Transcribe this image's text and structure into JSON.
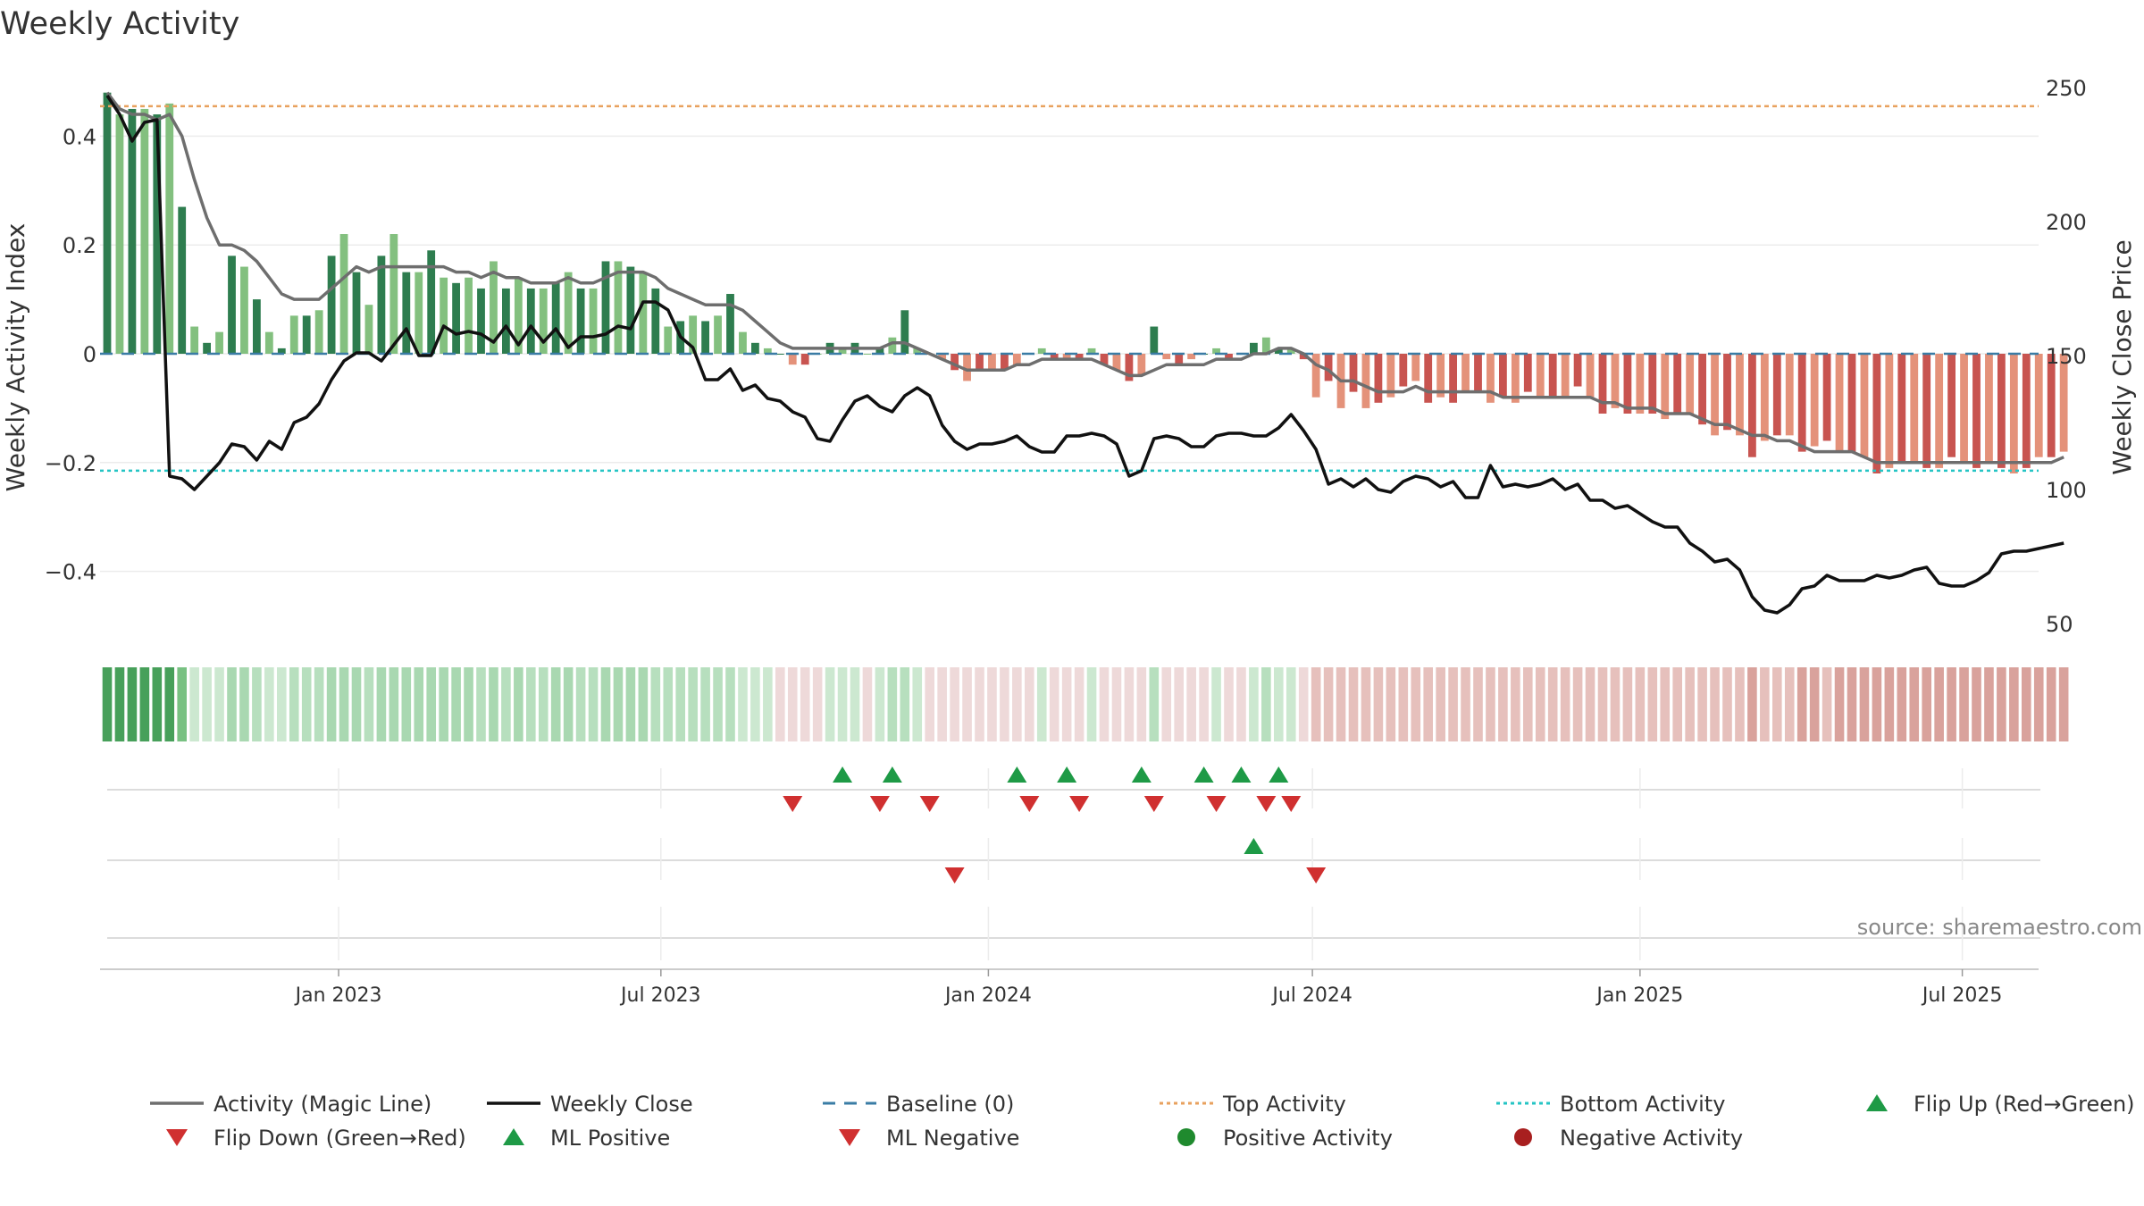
{
  "chart_data": {
    "type": "bar",
    "title": "Weekly Activity",
    "ylabel": "Weekly Activity Index",
    "y2label": "Weekly Close Price",
    "ylim": [
      -0.52,
      0.5
    ],
    "y2lim": [
      45.0,
      255.0
    ],
    "yticks": [
      0.4,
      0.2,
      0.0,
      -0.2,
      -0.4
    ],
    "ytick_labels": [
      "0.4",
      "0.2",
      "0",
      "−0.2",
      "−0.4"
    ],
    "y2ticks": [
      250,
      200,
      150,
      100,
      50
    ],
    "x_ticks": [
      {
        "label": "Jan 2023",
        "week": 18.57
      },
      {
        "label": "Jul 2023",
        "week": 44.43
      },
      {
        "label": "Jan 2024",
        "week": 70.71
      },
      {
        "label": "Jul 2024",
        "week": 96.71
      },
      {
        "label": "Jan 2025",
        "week": 123.0
      },
      {
        "label": "Jul 2025",
        "week": 148.86
      }
    ],
    "top_activity": 0.455,
    "bottom_activity": -0.215,
    "baseline": 0,
    "activity": [
      0.48,
      0.44,
      0.45,
      0.45,
      0.44,
      0.46,
      0.27,
      0.05,
      0.02,
      0.04,
      0.18,
      0.16,
      0.1,
      0.04,
      0.01,
      0.07,
      0.07,
      0.08,
      0.18,
      0.22,
      0.15,
      0.09,
      0.18,
      0.22,
      0.15,
      0.15,
      0.19,
      0.14,
      0.13,
      0.14,
      0.12,
      0.17,
      0.12,
      0.14,
      0.12,
      0.12,
      0.13,
      0.15,
      0.12,
      0.12,
      0.17,
      0.17,
      0.16,
      0.15,
      0.12,
      0.05,
      0.06,
      0.07,
      0.06,
      0.07,
      0.11,
      0.04,
      0.02,
      0.01,
      0.0,
      -0.02,
      -0.02,
      -0.0,
      0.02,
      0.01,
      0.02,
      0.0,
      0.01,
      0.03,
      0.08,
      0.01,
      0.0,
      -0.01,
      -0.03,
      -0.05,
      -0.03,
      -0.03,
      -0.03,
      -0.02,
      0.0,
      0.01,
      -0.01,
      -0.01,
      -0.01,
      0.01,
      -0.02,
      -0.03,
      -0.05,
      -0.04,
      0.05,
      -0.01,
      -0.02,
      -0.01,
      0.0,
      0.01,
      -0.01,
      -0.0,
      0.02,
      0.03,
      0.01,
      0.01,
      -0.01,
      -0.08,
      -0.05,
      -0.1,
      -0.07,
      -0.1,
      -0.09,
      -0.08,
      -0.06,
      -0.05,
      -0.09,
      -0.08,
      -0.09,
      -0.07,
      -0.07,
      -0.09,
      -0.08,
      -0.09,
      -0.07,
      -0.08,
      -0.08,
      -0.08,
      -0.06,
      -0.08,
      -0.11,
      -0.1,
      -0.11,
      -0.11,
      -0.11,
      -0.12,
      -0.11,
      -0.11,
      -0.13,
      -0.15,
      -0.14,
      -0.15,
      -0.19,
      -0.16,
      -0.15,
      -0.15,
      -0.18,
      -0.17,
      -0.16,
      -0.18,
      -0.18,
      -0.19,
      -0.22,
      -0.21,
      -0.2,
      -0.2,
      -0.21,
      -0.21,
      -0.19,
      -0.2,
      -0.21,
      -0.2,
      -0.21,
      -0.22,
      -0.21,
      -0.19,
      -0.19,
      -0.18
    ],
    "magic_line": [
      0.48,
      0.45,
      0.44,
      0.44,
      0.43,
      0.44,
      0.4,
      0.32,
      0.25,
      0.2,
      0.2,
      0.19,
      0.17,
      0.14,
      0.11,
      0.1,
      0.1,
      0.1,
      0.12,
      0.14,
      0.16,
      0.15,
      0.16,
      0.16,
      0.16,
      0.16,
      0.16,
      0.16,
      0.15,
      0.15,
      0.14,
      0.15,
      0.14,
      0.14,
      0.13,
      0.13,
      0.13,
      0.14,
      0.13,
      0.13,
      0.14,
      0.15,
      0.15,
      0.15,
      0.14,
      0.12,
      0.11,
      0.1,
      0.09,
      0.09,
      0.09,
      0.08,
      0.06,
      0.04,
      0.02,
      0.01,
      0.01,
      0.01,
      0.01,
      0.01,
      0.01,
      0.01,
      0.01,
      0.02,
      0.02,
      0.01,
      -0.0,
      -0.01,
      -0.02,
      -0.03,
      -0.03,
      -0.03,
      -0.03,
      -0.02,
      -0.02,
      -0.01,
      -0.01,
      -0.01,
      -0.01,
      -0.01,
      -0.02,
      -0.03,
      -0.04,
      -0.04,
      -0.03,
      -0.02,
      -0.02,
      -0.02,
      -0.02,
      -0.01,
      -0.01,
      -0.01,
      -0.0,
      0.0,
      0.01,
      0.01,
      -0.0,
      -0.02,
      -0.03,
      -0.05,
      -0.05,
      -0.06,
      -0.07,
      -0.07,
      -0.07,
      -0.06,
      -0.07,
      -0.07,
      -0.07,
      -0.07,
      -0.07,
      -0.07,
      -0.08,
      -0.08,
      -0.08,
      -0.08,
      -0.08,
      -0.08,
      -0.08,
      -0.08,
      -0.09,
      -0.09,
      -0.1,
      -0.1,
      -0.1,
      -0.11,
      -0.11,
      -0.11,
      -0.12,
      -0.13,
      -0.13,
      -0.14,
      -0.15,
      -0.15,
      -0.16,
      -0.16,
      -0.17,
      -0.18,
      -0.18,
      -0.18,
      -0.18,
      -0.19,
      -0.2,
      -0.2,
      -0.2,
      -0.2,
      -0.2,
      -0.2,
      -0.2,
      -0.2,
      -0.2,
      -0.2,
      -0.2,
      -0.2,
      -0.2,
      -0.2,
      -0.2,
      -0.19
    ],
    "weekly_close": [
      247,
      240,
      230,
      237,
      238,
      105,
      104,
      100,
      105,
      110,
      117,
      116,
      111,
      118,
      115,
      125,
      127,
      132,
      141,
      148,
      151,
      151,
      148,
      154,
      160,
      150,
      150,
      161,
      158,
      159,
      158,
      155,
      161,
      154,
      161,
      155,
      160,
      153,
      157,
      157,
      158,
      161,
      160,
      170,
      170,
      167,
      157,
      153,
      141,
      141,
      145,
      137,
      139,
      134,
      133,
      129,
      127,
      119,
      118,
      126,
      133,
      135,
      131,
      129,
      135,
      138,
      135,
      124,
      118,
      115,
      117,
      117,
      118,
      120,
      116,
      114,
      114,
      120,
      120,
      121,
      120,
      117,
      105,
      107,
      119,
      120,
      119,
      116,
      116,
      120,
      121,
      121,
      120,
      120,
      123,
      128,
      122,
      115,
      102,
      104,
      101,
      104,
      100,
      99,
      103,
      105,
      104,
      101,
      103,
      97,
      97,
      109,
      101,
      102,
      101,
      102,
      104,
      100,
      102,
      96,
      96,
      93,
      94,
      91,
      88,
      86,
      86,
      80,
      77,
      73,
      74,
      70,
      60,
      55,
      54,
      57,
      63,
      64,
      68,
      66,
      66,
      66,
      68,
      67,
      68,
      70,
      71,
      65,
      64,
      64,
      66,
      69,
      76,
      77,
      77,
      78,
      79,
      80
    ],
    "strip_colors": [
      "#47a05a",
      "#47a05a",
      "#47a05a",
      "#47a05a",
      "#47a05a",
      "#47a05a",
      "#78c182",
      "#cce8d0",
      "#cce8d0",
      "#cce8d0",
      "#a9d8b1",
      "#a9d8b1",
      "#b7dfbe",
      "#cce8d0",
      "#cce8d0",
      "#b7dfbe",
      "#b7dfbe",
      "#b7dfbe",
      "#a9d8b1",
      "#a9d8b1",
      "#a9d8b1",
      "#b7dfbe",
      "#a9d8b1",
      "#a9d8b1",
      "#a9d8b1",
      "#a9d8b1",
      "#a9d8b1",
      "#a9d8b1",
      "#a9d8b1",
      "#a9d8b1",
      "#b7dfbe",
      "#a9d8b1",
      "#b7dfbe",
      "#a9d8b1",
      "#b7dfbe",
      "#b7dfbe",
      "#a9d8b1",
      "#a9d8b1",
      "#b7dfbe",
      "#b7dfbe",
      "#a9d8b1",
      "#a9d8b1",
      "#a9d8b1",
      "#a9d8b1",
      "#b7dfbe",
      "#b7dfbe",
      "#b7dfbe",
      "#b7dfbe",
      "#b7dfbe",
      "#b7dfbe",
      "#b7dfbe",
      "#cce8d0",
      "#cce8d0",
      "#cce8d0",
      "#eed9d9",
      "#eed9d9",
      "#eed9d9",
      "#eed9d9",
      "#cce8d0",
      "#cce8d0",
      "#cce8d0",
      "#eed9d9",
      "#cce8d0",
      "#b7dfbe",
      "#b7dfbe",
      "#cce8d0",
      "#eed9d9",
      "#eed9d9",
      "#eed9d9",
      "#eed9d9",
      "#eed9d9",
      "#eed9d9",
      "#eed9d9",
      "#eed9d9",
      "#eed9d9",
      "#cce8d0",
      "#eed9d9",
      "#eed9d9",
      "#eed9d9",
      "#cce8d0",
      "#eed9d9",
      "#eed9d9",
      "#eed9d9",
      "#eed9d9",
      "#b7dfbe",
      "#eed9d9",
      "#eed9d9",
      "#eed9d9",
      "#eed9d9",
      "#cce8d0",
      "#eed9d9",
      "#eed9d9",
      "#cce8d0",
      "#b7dfbe",
      "#cce8d0",
      "#cce8d0",
      "#eed9d9",
      "#e6c0bc",
      "#e6c0bc",
      "#e6c0bc",
      "#e6c0bc",
      "#e6c0bc",
      "#e6c0bc",
      "#e6c0bc",
      "#e6c0bc",
      "#e6c0bc",
      "#e6c0bc",
      "#e6c0bc",
      "#e6c0bc",
      "#e6c0bc",
      "#e6c0bc",
      "#e6c0bc",
      "#e6c0bc",
      "#e6c0bc",
      "#e6c0bc",
      "#e6c0bc",
      "#e6c0bc",
      "#e6c0bc",
      "#e6c0bc",
      "#e6c0bc",
      "#e6c0bc",
      "#e6c0bc",
      "#e6c0bc",
      "#e6c0bc",
      "#e6c0bc",
      "#e6c0bc",
      "#e6c0bc",
      "#e6c0bc",
      "#e6c0bc",
      "#e6c0bc",
      "#e6c0bc",
      "#e6c0bc",
      "#d9a29c",
      "#e6c0bc",
      "#e6c0bc",
      "#e6c0bc",
      "#d9a29c",
      "#d9a29c",
      "#e6c0bc",
      "#d9a29c",
      "#d9a29c",
      "#d9a29c",
      "#d9a29c",
      "#d9a29c",
      "#d9a29c",
      "#d9a29c",
      "#d9a29c",
      "#d9a29c",
      "#d9a29c",
      "#d9a29c",
      "#d9a29c",
      "#d9a29c",
      "#d9a29c",
      "#d9a29c",
      "#d9a29c",
      "#d9a29c",
      "#d9a29c",
      "#d9a29c"
    ],
    "flip_up_weeks": [
      59,
      63,
      73,
      77,
      83,
      88,
      91,
      94
    ],
    "flip_down_weeks": [
      55,
      62,
      66,
      74,
      78,
      84,
      89,
      93,
      95
    ],
    "ml_positive_weeks": [
      92
    ],
    "ml_negative_weeks": [
      68,
      97
    ],
    "positive_activity_weeks": [],
    "negative_activity_weeks": []
  },
  "colors": {
    "green_dark": "#2e7d4f",
    "green_light": "#83c07f",
    "red_dark": "#c85450",
    "red_light": "#e4927a",
    "magic_line": "#6e6e6e",
    "close_line": "#111111",
    "top_line": "#e8a15e",
    "bottom_line": "#25c4c4",
    "baseline": "#3a7ca5",
    "flip_up": "#1e9a46",
    "flip_down": "#d03030",
    "pos_dot": "#1f8a2e",
    "neg_dot": "#a81f1f"
  },
  "source": "source: sharemaestro.com",
  "legend": [
    {
      "label": "Activity (Magic Line)",
      "kind": "line",
      "color": "#6e6e6e"
    },
    {
      "label": "Weekly Close",
      "kind": "line",
      "color": "#111111"
    },
    {
      "label": "Baseline (0)",
      "kind": "dash",
      "color": "#3a7ca5"
    },
    {
      "label": "Top Activity",
      "kind": "dot-line",
      "color": "#e8a15e"
    },
    {
      "label": "Bottom Activity",
      "kind": "dot-line",
      "color": "#25c4c4"
    },
    {
      "label": "Flip Up (Red→Green)",
      "kind": "tri-up",
      "color": "#1e9a46"
    },
    {
      "label": "Flip Down (Green→Red)",
      "kind": "tri-down",
      "color": "#d03030"
    },
    {
      "label": "ML Positive",
      "kind": "tri-up",
      "color": "#1e9a46"
    },
    {
      "label": "ML Negative",
      "kind": "tri-down",
      "color": "#d03030"
    },
    {
      "label": "Positive Activity",
      "kind": "dot",
      "color": "#1f8a2e"
    },
    {
      "label": "Negative Activity",
      "kind": "dot",
      "color": "#a81f1f"
    }
  ]
}
